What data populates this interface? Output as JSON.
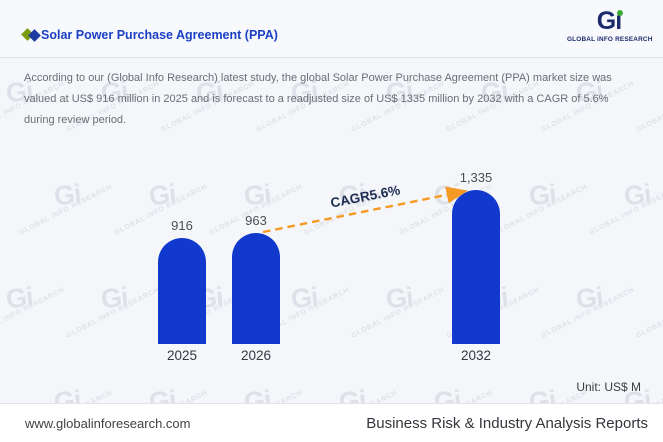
{
  "header": {
    "title": "Solar Power Purchase Agreement (PPA)",
    "logo_mark_g": "G",
    "logo_mark_i": "ı",
    "logo_caption": "GLOBAL iNFO RESEARCH",
    "brand_navy": "#1b2a6b",
    "brand_green": "#3aaa35",
    "title_color": "#1a3fc4"
  },
  "description": {
    "text": "According to our (Global Info Research) latest study, the global Solar Power Purchase Agreement (PPA) market size was valued at US$ 916 million in 2025 and is forecast to a readjusted size of US$ 1335 million by 2032 with a CAGR of 5.6% during review period."
  },
  "chart_data": {
    "type": "bar",
    "title": "Solar Power Purchase Agreement (PPA) market size",
    "categories": [
      "2025",
      "2026",
      "2032"
    ],
    "values": [
      916,
      963,
      1335
    ],
    "value_labels": [
      "916",
      "963",
      "1,335"
    ],
    "annotation": "CAGR5.6%",
    "unit_label": "Unit: US$ M",
    "ylim": [
      0,
      1335
    ],
    "grid": false,
    "legend": false,
    "bar_color": "#1139cd",
    "arrow_color": "#f59a23"
  },
  "footer": {
    "website": "www.globalinforesearch.com",
    "tagline": "Business Risk & Industry Analysis Reports"
  },
  "watermark": {
    "mark": "Gi",
    "text": "GLOBAL INFO RESEARCH"
  }
}
